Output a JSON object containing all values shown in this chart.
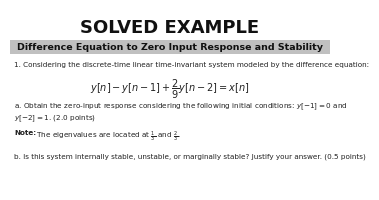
{
  "bg_color": "#ffffff",
  "title": "SOLVED EXAMPLE",
  "title_fontsize": 13,
  "subtitle": "Difference Equation to Zero Input Response and Stability",
  "subtitle_bg": "#c0c0c0",
  "subtitle_fontsize": 6.8,
  "body_fontsize": 5.2,
  "eq_fontsize": 7.0,
  "line1": "1. Considering the discrete-time linear time-invariant system modeled by the difference equation:",
  "equation": "$y[n] - y[n-1] + \\dfrac{2}{9}y[n-2] = x[n]$",
  "part_a": "a. Obtain the zero-input response considering the following initial conditions: $y[-1] = 0$ and",
  "part_a2": "$y[-2] = 1$. (2.0 points)",
  "note_bold": "Note:",
  "note_rest": " The eigenvalues are located at $\\frac{1}{3}$ and $\\frac{2}{3}$.",
  "part_b": "b. Is this system internally stable, unstable, or marginally stable? Justify your answer. (0.5 points)"
}
